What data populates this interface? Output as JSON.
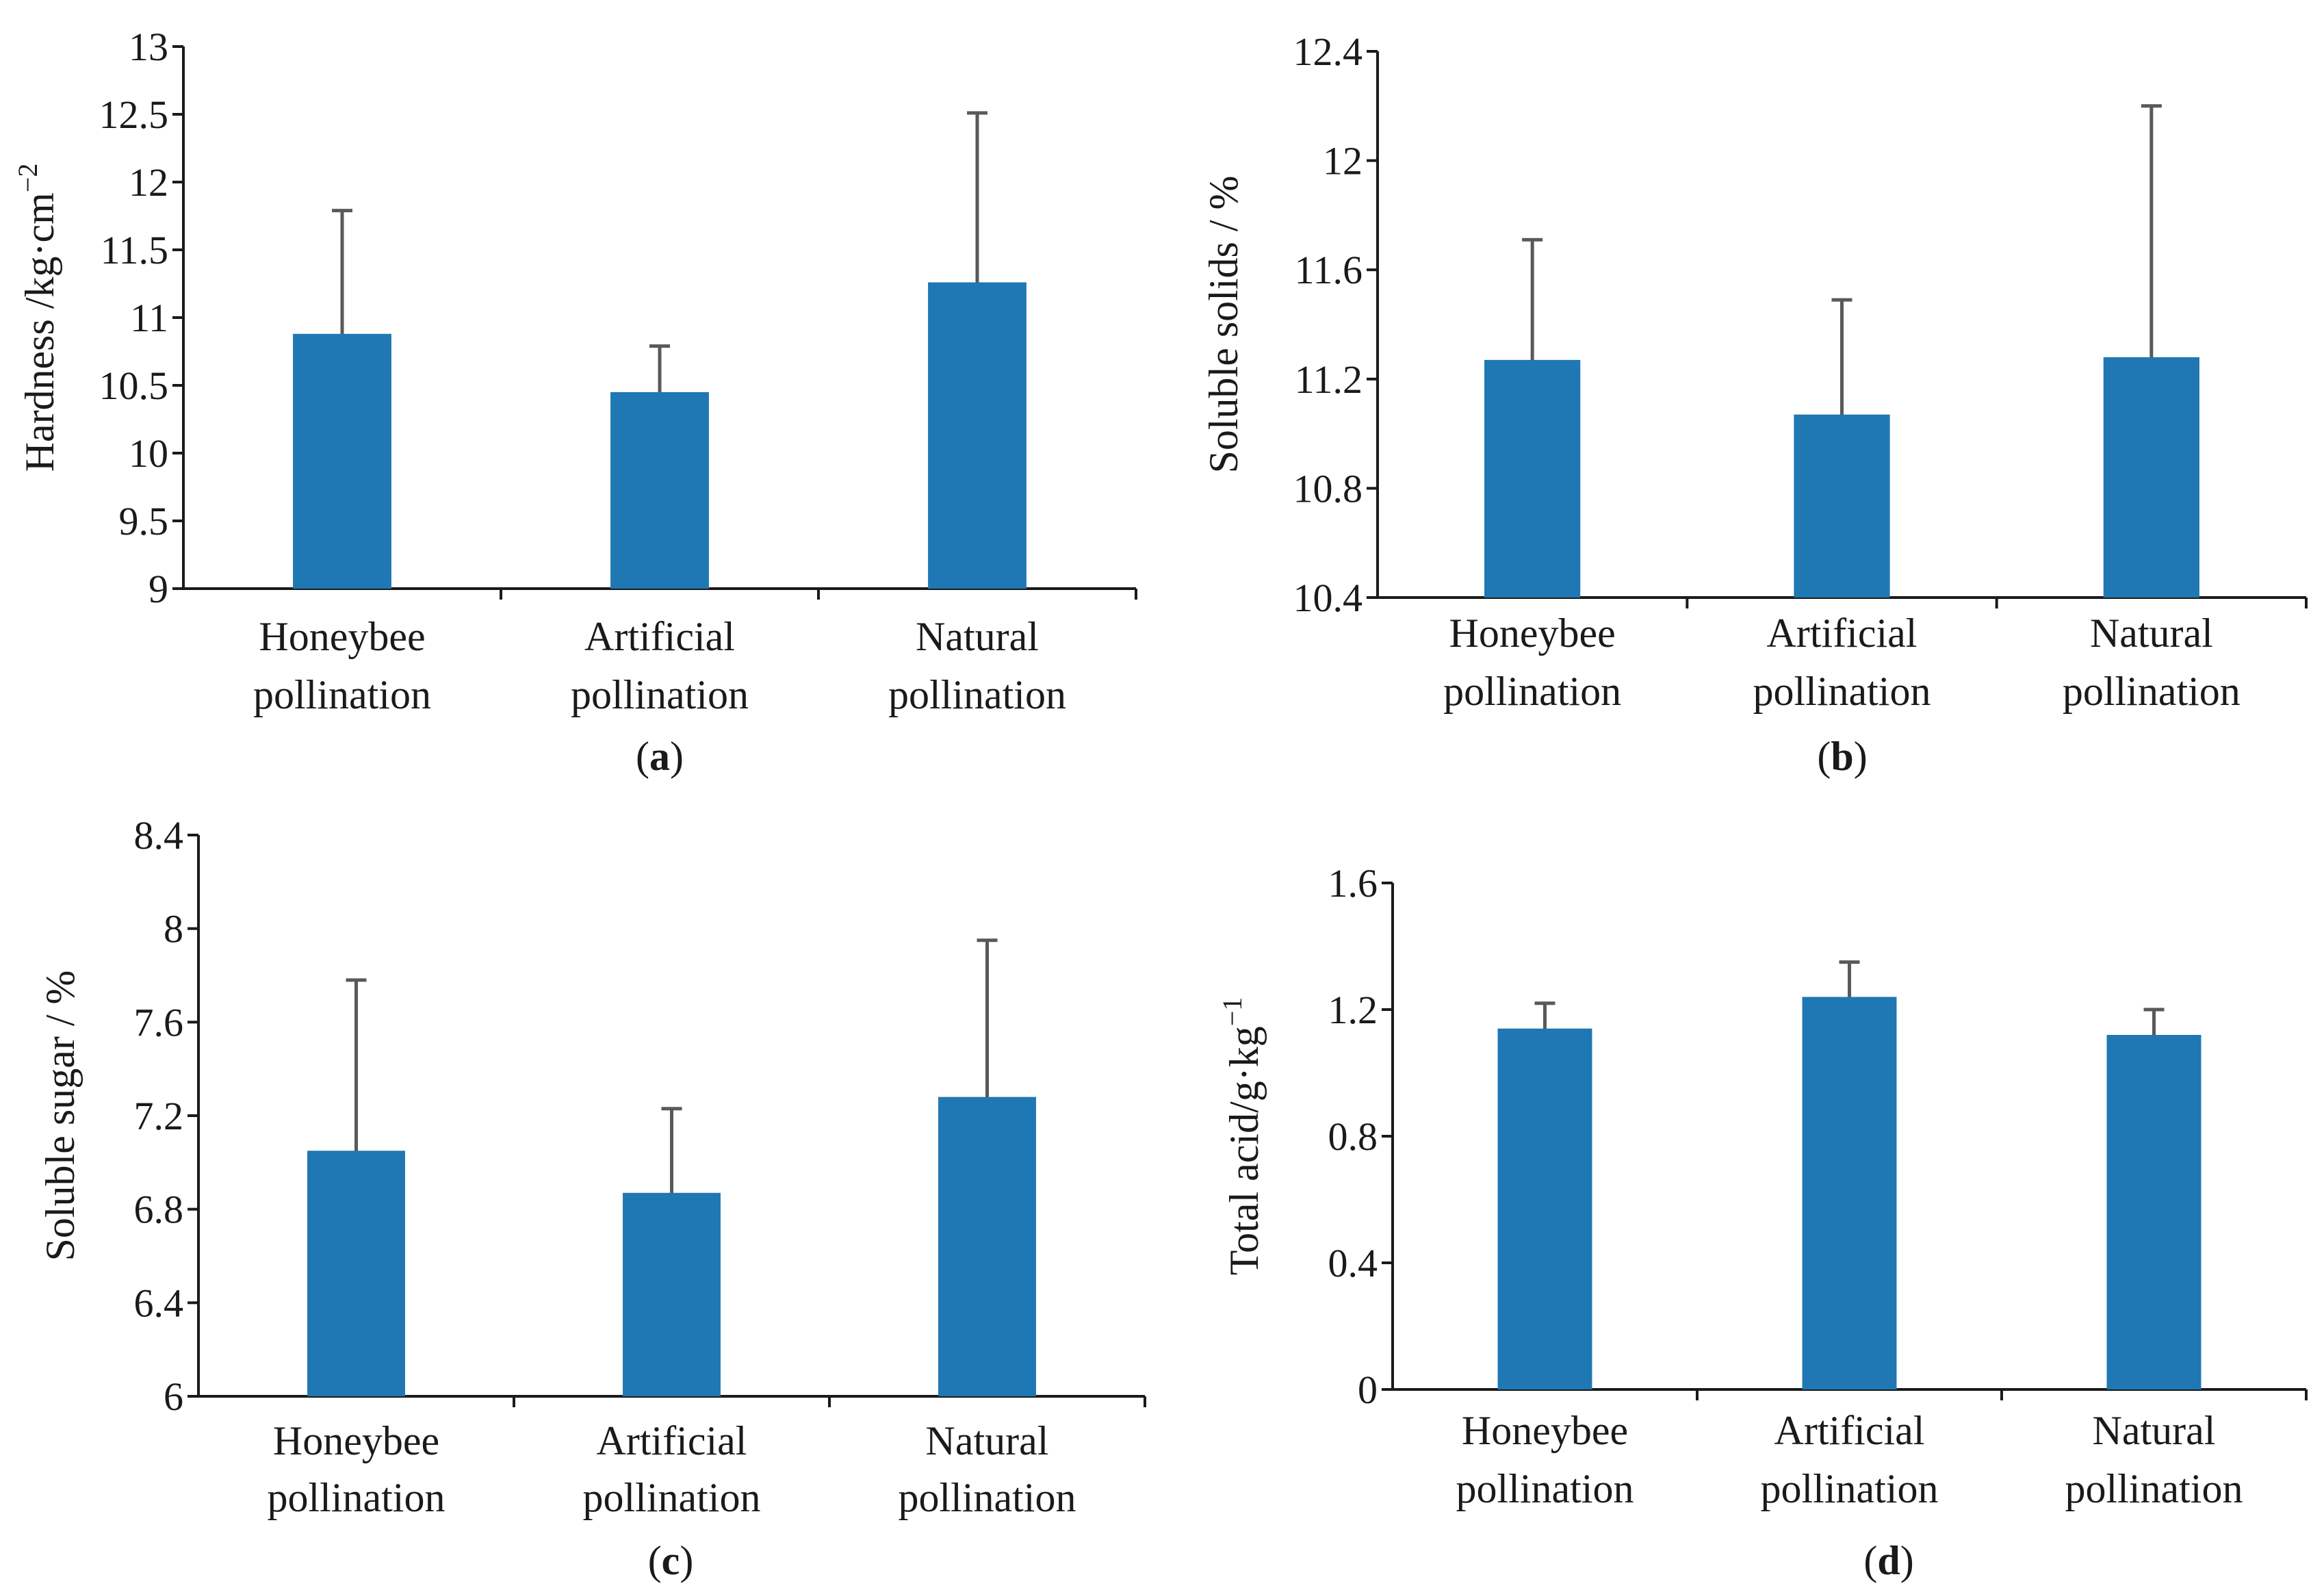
{
  "colors": {
    "bar": "#1f77b4",
    "axis": "#1a1a1a",
    "error_bar": "#595959"
  },
  "chart_data": [
    {
      "type": "bar",
      "panel": "a",
      "ylabel": "Hardness /kg·cm",
      "ylabel_sup": "−2",
      "ylim": [
        9,
        13
      ],
      "yticks": [
        "9",
        "9.5",
        "10",
        "10.5",
        "11",
        "11.5",
        "12",
        "12.5",
        "13"
      ],
      "categories": [
        [
          "Honeybee",
          "pollination"
        ],
        [
          "Artificial",
          "pollination"
        ],
        [
          "Natural",
          "pollination"
        ]
      ],
      "values": [
        10.88,
        10.45,
        11.26
      ],
      "error_upper": [
        11.79,
        10.79,
        12.51
      ]
    },
    {
      "type": "bar",
      "panel": "b",
      "ylabel": "Soluble solids / %",
      "ylabel_sup": "",
      "ylim": [
        10.4,
        12.4
      ],
      "yticks": [
        "10.4",
        "10.8",
        "11.2",
        "11.6",
        "12",
        "12.4"
      ],
      "categories": [
        [
          "Honeybee",
          "pollination"
        ],
        [
          "Artificial",
          "pollination"
        ],
        [
          "Natural",
          "pollination"
        ]
      ],
      "values": [
        11.27,
        11.07,
        11.28
      ],
      "error_upper": [
        11.71,
        11.49,
        12.2
      ]
    },
    {
      "type": "bar",
      "panel": "c",
      "ylabel": "Soluble sugar / %",
      "ylabel_sup": "",
      "ylim": [
        6,
        8.4
      ],
      "yticks": [
        "6",
        "6.4",
        "6.8",
        "7.2",
        "7.6",
        "8",
        "8.4"
      ],
      "categories": [
        [
          "Honeybee",
          "pollination"
        ],
        [
          "Artificial",
          "pollination"
        ],
        [
          "Natural",
          "pollination"
        ]
      ],
      "values": [
        7.05,
        6.87,
        7.28
      ],
      "error_upper": [
        7.78,
        7.23,
        7.95
      ]
    },
    {
      "type": "bar",
      "panel": "d",
      "ylabel": "Total acid/g·kg",
      "ylabel_sup": "−1",
      "ylim": [
        0,
        1.6
      ],
      "yticks": [
        "0",
        "0.4",
        "0.8",
        "1.2",
        "1.6"
      ],
      "categories": [
        [
          "Honeybee",
          "pollination"
        ],
        [
          "Artificial",
          "pollination"
        ],
        [
          "Natural",
          "pollination"
        ]
      ],
      "values": [
        1.14,
        1.24,
        1.12
      ],
      "error_upper": [
        1.22,
        1.35,
        1.2
      ]
    }
  ]
}
